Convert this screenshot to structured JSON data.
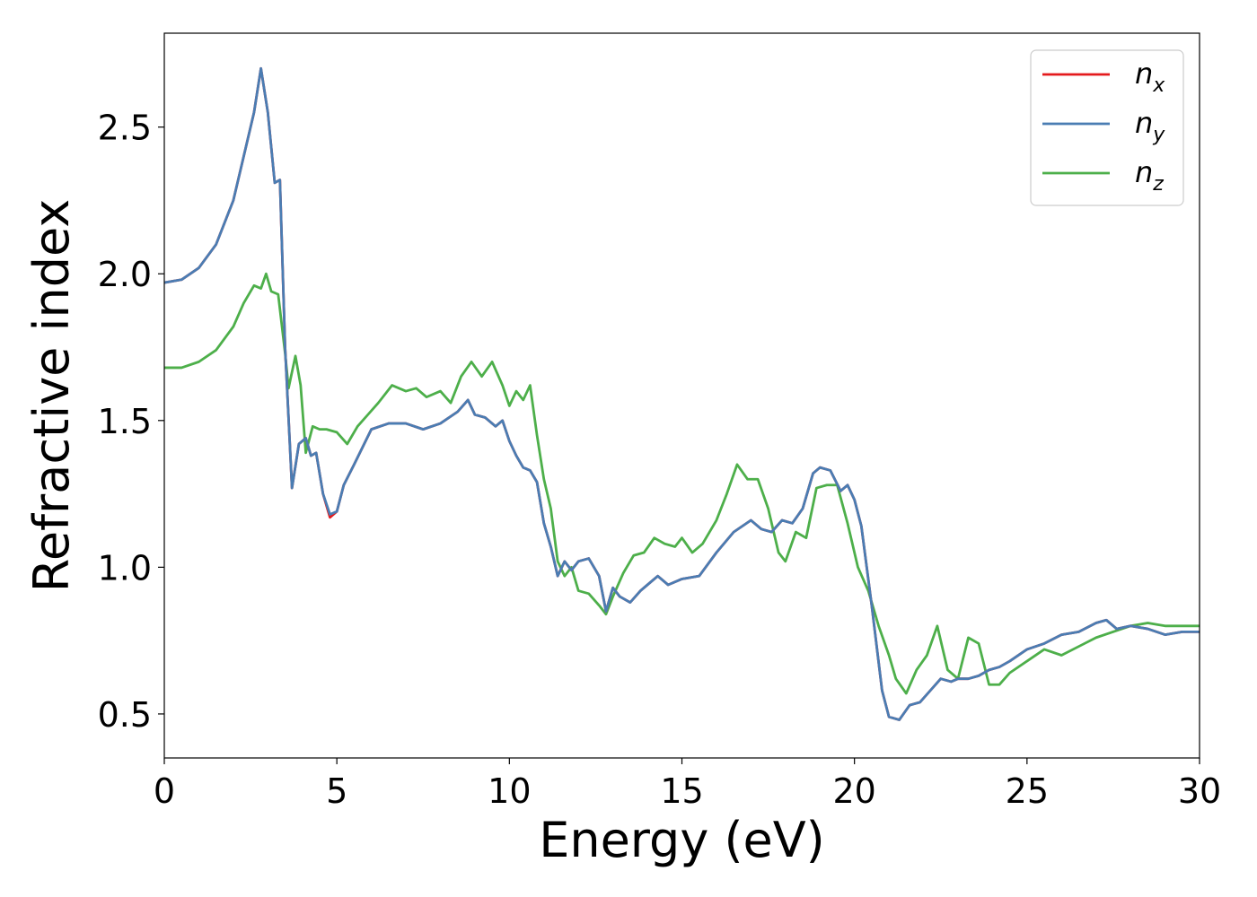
{
  "chart_data": {
    "type": "line",
    "xlabel": "Energy (eV)",
    "ylabel": "Refractive index",
    "xlim": [
      0,
      30
    ],
    "ylim": [
      0.35,
      2.82
    ],
    "xticks": [
      0,
      5,
      10,
      15,
      20,
      25,
      30
    ],
    "xtick_labels": [
      "0",
      "5",
      "10",
      "15",
      "20",
      "25",
      "30"
    ],
    "yticks": [
      0.5,
      1.0,
      1.5,
      2.0,
      2.5
    ],
    "ytick_labels": [
      "0.5",
      "1.0",
      "1.5",
      "2.0",
      "2.5"
    ],
    "grid": false,
    "legend_position": "top-right",
    "series": [
      {
        "name": "n_x",
        "legend_base": "n",
        "legend_sub": "x",
        "color": "#e41a1c",
        "x": [
          0,
          0.5,
          1,
          1.5,
          2,
          2.3,
          2.6,
          2.8,
          3.0,
          3.2,
          3.35,
          3.5,
          3.7,
          3.9,
          4.1,
          4.25,
          4.4,
          4.6,
          4.8,
          5.0,
          5.2,
          5.5,
          6.0,
          6.5,
          7.0,
          7.5,
          8.0,
          8.5,
          8.8,
          9.0,
          9.3,
          9.6,
          9.8,
          10.0,
          10.2,
          10.4,
          10.6,
          10.8,
          11.0,
          11.2,
          11.4,
          11.6,
          11.8,
          12.0,
          12.3,
          12.6,
          12.8,
          13.0,
          13.2,
          13.5,
          13.8,
          14.0,
          14.3,
          14.6,
          15.0,
          15.5,
          16.0,
          16.5,
          17.0,
          17.3,
          17.6,
          17.9,
          18.2,
          18.5,
          18.8,
          19.0,
          19.3,
          19.6,
          19.8,
          20.0,
          20.2,
          20.5,
          20.8,
          21.0,
          21.3,
          21.6,
          21.9,
          22.2,
          22.5,
          22.8,
          23.0,
          23.3,
          23.6,
          23.9,
          24.2,
          24.5,
          25.0,
          25.5,
          26.0,
          26.5,
          27.0,
          27.3,
          27.6,
          28.0,
          28.5,
          29.0,
          29.5,
          30.0
        ],
        "values": [
          1.97,
          1.98,
          2.02,
          2.1,
          2.25,
          2.4,
          2.55,
          2.7,
          2.55,
          2.31,
          2.32,
          1.75,
          1.27,
          1.42,
          1.44,
          1.38,
          1.39,
          1.25,
          1.17,
          1.19,
          1.28,
          1.35,
          1.47,
          1.49,
          1.49,
          1.47,
          1.49,
          1.53,
          1.57,
          1.52,
          1.51,
          1.48,
          1.5,
          1.43,
          1.38,
          1.34,
          1.33,
          1.29,
          1.15,
          1.07,
          0.97,
          1.02,
          0.99,
          1.02,
          1.03,
          0.97,
          0.85,
          0.93,
          0.9,
          0.88,
          0.92,
          0.94,
          0.97,
          0.94,
          0.96,
          0.97,
          1.05,
          1.12,
          1.16,
          1.13,
          1.12,
          1.16,
          1.15,
          1.2,
          1.32,
          1.34,
          1.33,
          1.26,
          1.28,
          1.23,
          1.14,
          0.87,
          0.58,
          0.49,
          0.48,
          0.53,
          0.54,
          0.58,
          0.62,
          0.61,
          0.62,
          0.62,
          0.63,
          0.65,
          0.66,
          0.68,
          0.72,
          0.74,
          0.77,
          0.78,
          0.81,
          0.82,
          0.79,
          0.8,
          0.79,
          0.77,
          0.78,
          0.78
        ]
      },
      {
        "name": "n_y",
        "legend_base": "n",
        "legend_sub": "y",
        "color": "#4a7db3",
        "x": [
          0,
          0.5,
          1,
          1.5,
          2,
          2.3,
          2.6,
          2.8,
          3.0,
          3.2,
          3.35,
          3.5,
          3.7,
          3.9,
          4.1,
          4.25,
          4.4,
          4.6,
          4.8,
          5.0,
          5.2,
          5.5,
          6.0,
          6.5,
          7.0,
          7.5,
          8.0,
          8.5,
          8.8,
          9.0,
          9.3,
          9.6,
          9.8,
          10.0,
          10.2,
          10.4,
          10.6,
          10.8,
          11.0,
          11.2,
          11.4,
          11.6,
          11.8,
          12.0,
          12.3,
          12.6,
          12.8,
          13.0,
          13.2,
          13.5,
          13.8,
          14.0,
          14.3,
          14.6,
          15.0,
          15.5,
          16.0,
          16.5,
          17.0,
          17.3,
          17.6,
          17.9,
          18.2,
          18.5,
          18.8,
          19.0,
          19.3,
          19.6,
          19.8,
          20.0,
          20.2,
          20.5,
          20.8,
          21.0,
          21.3,
          21.6,
          21.9,
          22.2,
          22.5,
          22.8,
          23.0,
          23.3,
          23.6,
          23.9,
          24.2,
          24.5,
          25.0,
          25.5,
          26.0,
          26.5,
          27.0,
          27.3,
          27.6,
          28.0,
          28.5,
          29.0,
          29.5,
          30.0
        ],
        "values": [
          1.97,
          1.98,
          2.02,
          2.1,
          2.25,
          2.4,
          2.55,
          2.7,
          2.55,
          2.31,
          2.32,
          1.75,
          1.27,
          1.42,
          1.44,
          1.38,
          1.39,
          1.25,
          1.18,
          1.19,
          1.28,
          1.35,
          1.47,
          1.49,
          1.49,
          1.47,
          1.49,
          1.53,
          1.57,
          1.52,
          1.51,
          1.48,
          1.5,
          1.43,
          1.38,
          1.34,
          1.33,
          1.29,
          1.15,
          1.07,
          0.97,
          1.02,
          0.99,
          1.02,
          1.03,
          0.97,
          0.85,
          0.93,
          0.9,
          0.88,
          0.92,
          0.94,
          0.97,
          0.94,
          0.96,
          0.97,
          1.05,
          1.12,
          1.16,
          1.13,
          1.12,
          1.16,
          1.15,
          1.2,
          1.32,
          1.34,
          1.33,
          1.26,
          1.28,
          1.23,
          1.14,
          0.87,
          0.58,
          0.49,
          0.48,
          0.53,
          0.54,
          0.58,
          0.62,
          0.61,
          0.62,
          0.62,
          0.63,
          0.65,
          0.66,
          0.68,
          0.72,
          0.74,
          0.77,
          0.78,
          0.81,
          0.82,
          0.79,
          0.8,
          0.79,
          0.77,
          0.78,
          0.78
        ]
      },
      {
        "name": "n_z",
        "legend_base": "n",
        "legend_sub": "z",
        "color": "#4daf4a",
        "x": [
          0,
          0.5,
          1,
          1.5,
          2,
          2.3,
          2.6,
          2.8,
          2.95,
          3.1,
          3.3,
          3.5,
          3.6,
          3.8,
          3.95,
          4.1,
          4.3,
          4.5,
          4.7,
          5.0,
          5.3,
          5.6,
          5.9,
          6.2,
          6.6,
          7.0,
          7.3,
          7.6,
          8.0,
          8.3,
          8.6,
          8.9,
          9.2,
          9.5,
          9.8,
          10.0,
          10.2,
          10.4,
          10.6,
          10.8,
          11.0,
          11.2,
          11.4,
          11.6,
          11.8,
          12.0,
          12.3,
          12.6,
          12.8,
          13.0,
          13.3,
          13.6,
          13.9,
          14.2,
          14.5,
          14.8,
          15.0,
          15.3,
          15.6,
          16.0,
          16.3,
          16.6,
          16.9,
          17.2,
          17.5,
          17.8,
          18.0,
          18.3,
          18.6,
          18.9,
          19.2,
          19.5,
          19.8,
          20.1,
          20.4,
          20.7,
          21.0,
          21.2,
          21.5,
          21.8,
          22.1,
          22.4,
          22.7,
          23.0,
          23.3,
          23.6,
          23.9,
          24.2,
          24.5,
          25.0,
          25.5,
          26.0,
          26.5,
          27.0,
          27.5,
          28.0,
          28.5,
          29.0,
          29.5,
          30.0
        ],
        "values": [
          1.68,
          1.68,
          1.7,
          1.74,
          1.82,
          1.9,
          1.96,
          1.95,
          2.0,
          1.94,
          1.93,
          1.73,
          1.61,
          1.72,
          1.62,
          1.39,
          1.48,
          1.47,
          1.47,
          1.46,
          1.42,
          1.48,
          1.52,
          1.56,
          1.62,
          1.6,
          1.61,
          1.58,
          1.6,
          1.56,
          1.65,
          1.7,
          1.65,
          1.7,
          1.62,
          1.55,
          1.6,
          1.57,
          1.62,
          1.45,
          1.3,
          1.2,
          1.02,
          0.97,
          1.0,
          0.92,
          0.91,
          0.87,
          0.84,
          0.9,
          0.98,
          1.04,
          1.05,
          1.1,
          1.08,
          1.07,
          1.1,
          1.05,
          1.08,
          1.16,
          1.25,
          1.35,
          1.3,
          1.3,
          1.2,
          1.05,
          1.02,
          1.12,
          1.1,
          1.27,
          1.28,
          1.28,
          1.15,
          1.0,
          0.92,
          0.8,
          0.7,
          0.62,
          0.57,
          0.65,
          0.7,
          0.8,
          0.65,
          0.62,
          0.76,
          0.74,
          0.6,
          0.6,
          0.64,
          0.68,
          0.72,
          0.7,
          0.73,
          0.76,
          0.78,
          0.8,
          0.81,
          0.8,
          0.8,
          0.8
        ]
      }
    ]
  }
}
